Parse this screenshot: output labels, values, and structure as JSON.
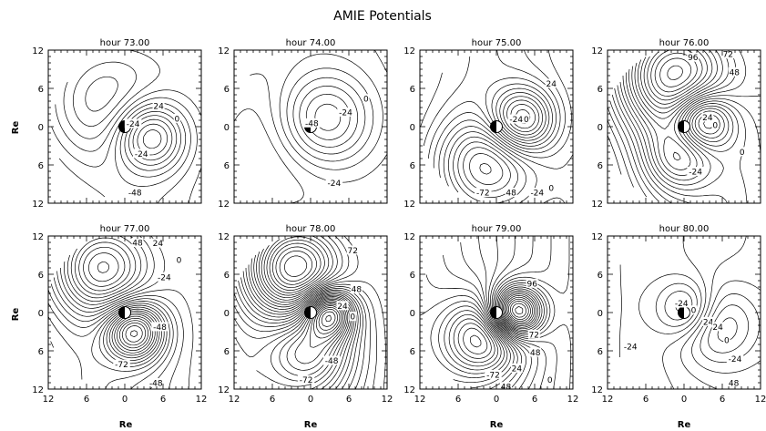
{
  "figure": {
    "title": "AMIE Potentials",
    "xlabel": "Re",
    "ylabel": "Re"
  },
  "chart_data": {
    "type": "contour",
    "title": "AMIE Potentials",
    "axis_ticks": {
      "x": [
        "12",
        "6",
        "0",
        "6",
        "12"
      ],
      "y": [
        "12",
        "6",
        "0",
        "6",
        "12"
      ]
    },
    "panels": [
      {
        "title": "hour 73.00",
        "contour_labels": [
          {
            "text": "24",
            "x": 5.3,
            "y": 3.3
          },
          {
            "text": "0",
            "x": 8.2,
            "y": 1.3
          },
          {
            "text": "-24",
            "x": 1.3,
            "y": 0.5
          },
          {
            "text": "-24",
            "x": 2.6,
            "y": -4.2
          },
          {
            "text": "-48",
            "x": 1.6,
            "y": -10.3
          }
        ]
      },
      {
        "title": "hour 74.00",
        "contour_labels": [
          {
            "text": "0",
            "x": 8.7,
            "y": 4.4
          },
          {
            "text": "-24",
            "x": 5.5,
            "y": 2.3
          },
          {
            "text": "-48",
            "x": 0.2,
            "y": 0.6
          },
          {
            "text": "-24",
            "x": 3.7,
            "y": -8.8
          }
        ]
      },
      {
        "title": "hour 75.00",
        "contour_labels": [
          {
            "text": "24",
            "x": 8.6,
            "y": 6.8
          },
          {
            "text": "-24",
            "x": 3.1,
            "y": 1.2
          },
          {
            "text": "0",
            "x": 4.7,
            "y": 1.2
          },
          {
            "text": "-72",
            "x": -2.1,
            "y": -10.3
          },
          {
            "text": "48",
            "x": 2.3,
            "y": -10.3
          },
          {
            "text": "-24",
            "x": 6.4,
            "y": -10.3
          },
          {
            "text": "0",
            "x": 8.6,
            "y": -9.6
          }
        ]
      },
      {
        "title": "hour 76.00",
        "contour_labels": [
          {
            "text": "96",
            "x": 1.4,
            "y": 10.9
          },
          {
            "text": "72",
            "x": 6.9,
            "y": 11.4
          },
          {
            "text": "48",
            "x": 7.9,
            "y": 8.6
          },
          {
            "text": "24",
            "x": 3.7,
            "y": 1.5
          },
          {
            "text": "0",
            "x": 4.9,
            "y": 0.3
          },
          {
            "text": "0",
            "x": 9.1,
            "y": -3.9
          },
          {
            "text": "-24",
            "x": 1.8,
            "y": -7.0
          }
        ]
      },
      {
        "title": "hour 77.00",
        "contour_labels": [
          {
            "text": "48",
            "x": 2.0,
            "y": 11.0
          },
          {
            "text": "24",
            "x": 5.2,
            "y": 10.9
          },
          {
            "text": "0",
            "x": 8.5,
            "y": 8.3
          },
          {
            "text": "-24",
            "x": 6.2,
            "y": 5.6
          },
          {
            "text": "-48",
            "x": 5.5,
            "y": -2.2
          },
          {
            "text": "-72",
            "x": -0.5,
            "y": -8.1
          },
          {
            "text": "-48",
            "x": 4.9,
            "y": -11.0
          }
        ]
      },
      {
        "title": "hour 78.00",
        "contour_labels": [
          {
            "text": "72",
            "x": 6.6,
            "y": 9.8
          },
          {
            "text": "48",
            "x": 7.2,
            "y": 3.7
          },
          {
            "text": "24",
            "x": 5.0,
            "y": 1.1
          },
          {
            "text": "0",
            "x": 6.6,
            "y": -0.6
          },
          {
            "text": "-48",
            "x": 3.3,
            "y": -7.5
          },
          {
            "text": "-72",
            "x": -0.7,
            "y": -10.5
          }
        ]
      },
      {
        "title": "hour 79.00",
        "contour_labels": [
          {
            "text": "96",
            "x": 5.6,
            "y": 4.6
          },
          {
            "text": "72",
            "x": 5.9,
            "y": -3.4
          },
          {
            "text": "48",
            "x": 6.1,
            "y": -6.2
          },
          {
            "text": "24",
            "x": 3.2,
            "y": -8.7
          },
          {
            "text": "0",
            "x": 8.4,
            "y": -10.5
          },
          {
            "text": "-72",
            "x": -0.5,
            "y": -9.7
          },
          {
            "text": "48",
            "x": 1.5,
            "y": -11.6
          }
        ]
      },
      {
        "title": "hour 80.00",
        "contour_labels": [
          {
            "text": "-24",
            "x": -0.4,
            "y": 1.5
          },
          {
            "text": "0",
            "x": 1.5,
            "y": 0.4
          },
          {
            "text": "24",
            "x": 3.8,
            "y": -1.4
          },
          {
            "text": "24",
            "x": 5.3,
            "y": -2.2
          },
          {
            "text": "0",
            "x": 6.7,
            "y": -4.3
          },
          {
            "text": "-24",
            "x": -8.4,
            "y": -5.3
          },
          {
            "text": "-24",
            "x": 8.0,
            "y": -7.2
          },
          {
            "text": "48",
            "x": 7.8,
            "y": -11.0
          }
        ]
      }
    ]
  }
}
